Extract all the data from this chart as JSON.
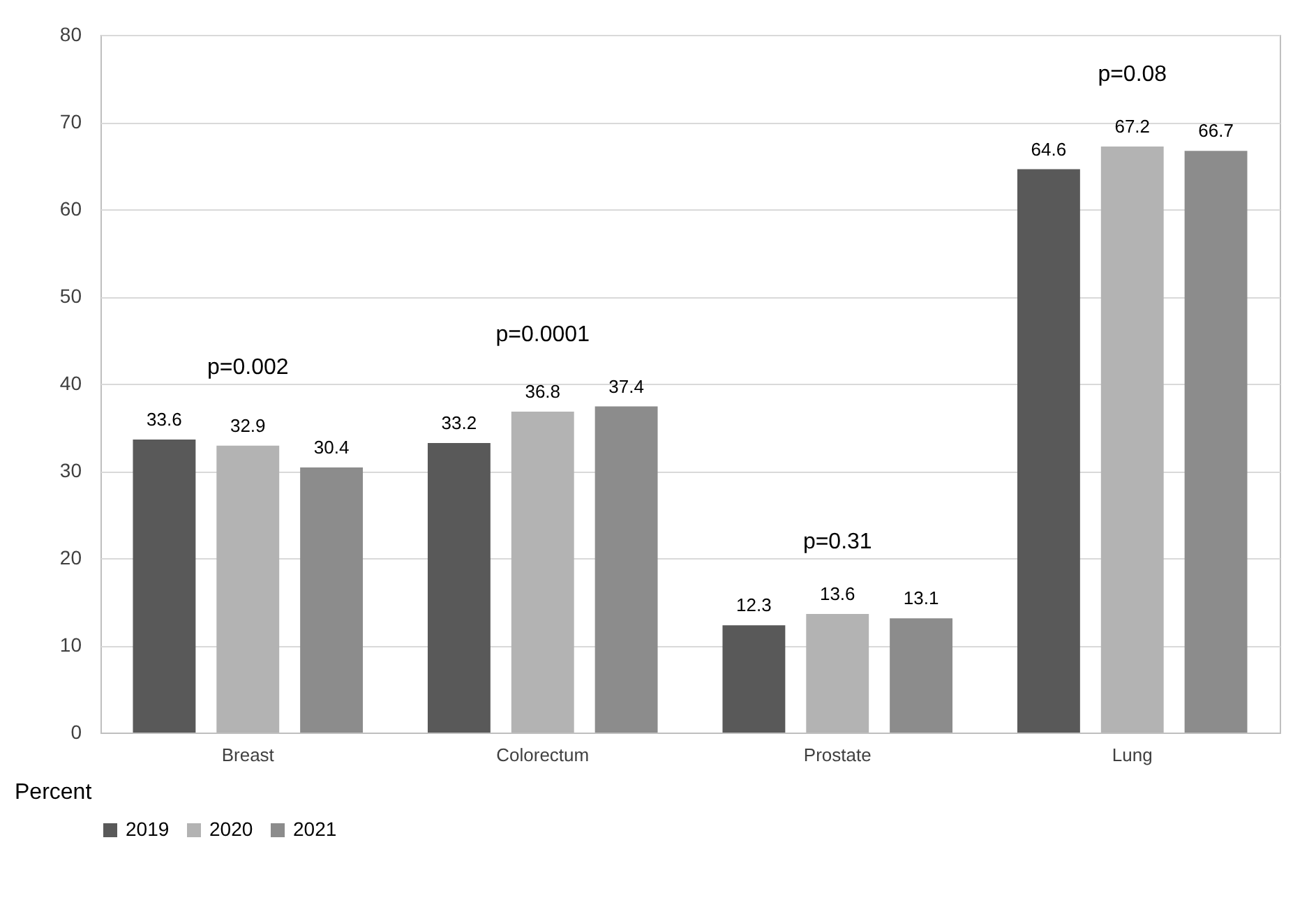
{
  "chart_data": {
    "type": "bar",
    "ylabel": "Percent",
    "categories": [
      "Breast",
      "Colorectum",
      "Prostate",
      "Lung"
    ],
    "series": [
      {
        "name": "2019",
        "color": "#595959",
        "values": [
          33.6,
          33.2,
          12.3,
          64.6
        ]
      },
      {
        "name": "2020",
        "color": "#b3b3b3",
        "values": [
          32.9,
          36.8,
          13.6,
          67.2
        ]
      },
      {
        "name": "2021",
        "color": "#8c8c8c",
        "values": [
          30.4,
          37.4,
          13.1,
          66.7
        ]
      }
    ],
    "ylim": [
      0,
      80
    ],
    "yticks": [
      0,
      10,
      20,
      30,
      40,
      50,
      60,
      70,
      80
    ],
    "grid": "y",
    "legend": "bottom",
    "data_labels": true,
    "annotations": [
      "p=0.002",
      "p=0.0001",
      "p=0.31",
      "p=0.08"
    ]
  }
}
